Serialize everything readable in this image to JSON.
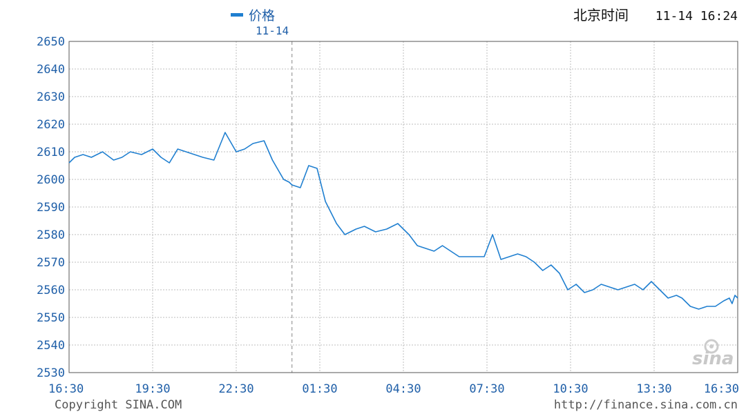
{
  "header": {
    "legend_label": "价格",
    "date_label": "11-14",
    "clock_prefix": "北京时间",
    "clock_value": "11-14 16:24",
    "legend_color": "#1f7fd0"
  },
  "footer": {
    "copyright": "Copyright  SINA.COM",
    "url": "http://finance.sina.com.cn"
  },
  "watermark": "sina",
  "chart_data": {
    "type": "line",
    "title": "",
    "xlabel": "",
    "ylabel": "",
    "ylim": [
      2530,
      2650
    ],
    "y_ticks": [
      2650,
      2640,
      2630,
      2620,
      2610,
      2600,
      2590,
      2580,
      2570,
      2560,
      2550,
      2540,
      2530
    ],
    "x_ticks": [
      "16:30",
      "19:30",
      "22:30",
      "01:30",
      "04:30",
      "07:30",
      "10:30",
      "13:30",
      "16:30"
    ],
    "grid": true,
    "date_divider_hours": 8,
    "series": [
      {
        "name": "价格",
        "color": "#1f7fd0",
        "x_hours": [
          0,
          0.2,
          0.5,
          0.8,
          1.2,
          1.6,
          1.9,
          2.2,
          2.6,
          3.0,
          3.3,
          3.6,
          3.9,
          4.2,
          4.5,
          4.8,
          5.2,
          5.6,
          6.0,
          6.3,
          6.6,
          7.0,
          7.3,
          7.7,
          7.9,
          8.0,
          8.3,
          8.6,
          8.9,
          9.2,
          9.6,
          9.9,
          10.3,
          10.6,
          11.0,
          11.4,
          11.8,
          12.2,
          12.5,
          12.8,
          13.1,
          13.4,
          13.7,
          14.0,
          14.3,
          14.6,
          14.9,
          15.2,
          15.5,
          15.8,
          16.1,
          16.4,
          16.7,
          17.0,
          17.3,
          17.6,
          17.9,
          18.2,
          18.5,
          18.8,
          19.1,
          19.4,
          19.7,
          20.0,
          20.3,
          20.6,
          20.9,
          21.2,
          21.5,
          21.8,
          22.0,
          22.3,
          22.6,
          22.9,
          23.2,
          23.5,
          23.7,
          23.8,
          23.9,
          24.0
        ],
        "values": [
          2606,
          2608,
          2609,
          2608,
          2610,
          2607,
          2608,
          2610,
          2609,
          2611,
          2608,
          2606,
          2611,
          2610,
          2609,
          2608,
          2607,
          2617,
          2610,
          2611,
          2613,
          2614,
          2607,
          2600,
          2599,
          2598,
          2597,
          2605,
          2604,
          2592,
          2584,
          2580,
          2582,
          2583,
          2581,
          2582,
          2584,
          2580,
          2576,
          2575,
          2574,
          2576,
          2574,
          2572,
          2572,
          2572,
          2572,
          2580,
          2571,
          2572,
          2573,
          2572,
          2570,
          2567,
          2569,
          2566,
          2560,
          2562,
          2559,
          2560,
          2562,
          2561,
          2560,
          2561,
          2562,
          2560,
          2563,
          2560,
          2557,
          2558,
          2557,
          2554,
          2553,
          2554,
          2554,
          2556,
          2557,
          2555,
          2558,
          2557
        ]
      }
    ]
  }
}
